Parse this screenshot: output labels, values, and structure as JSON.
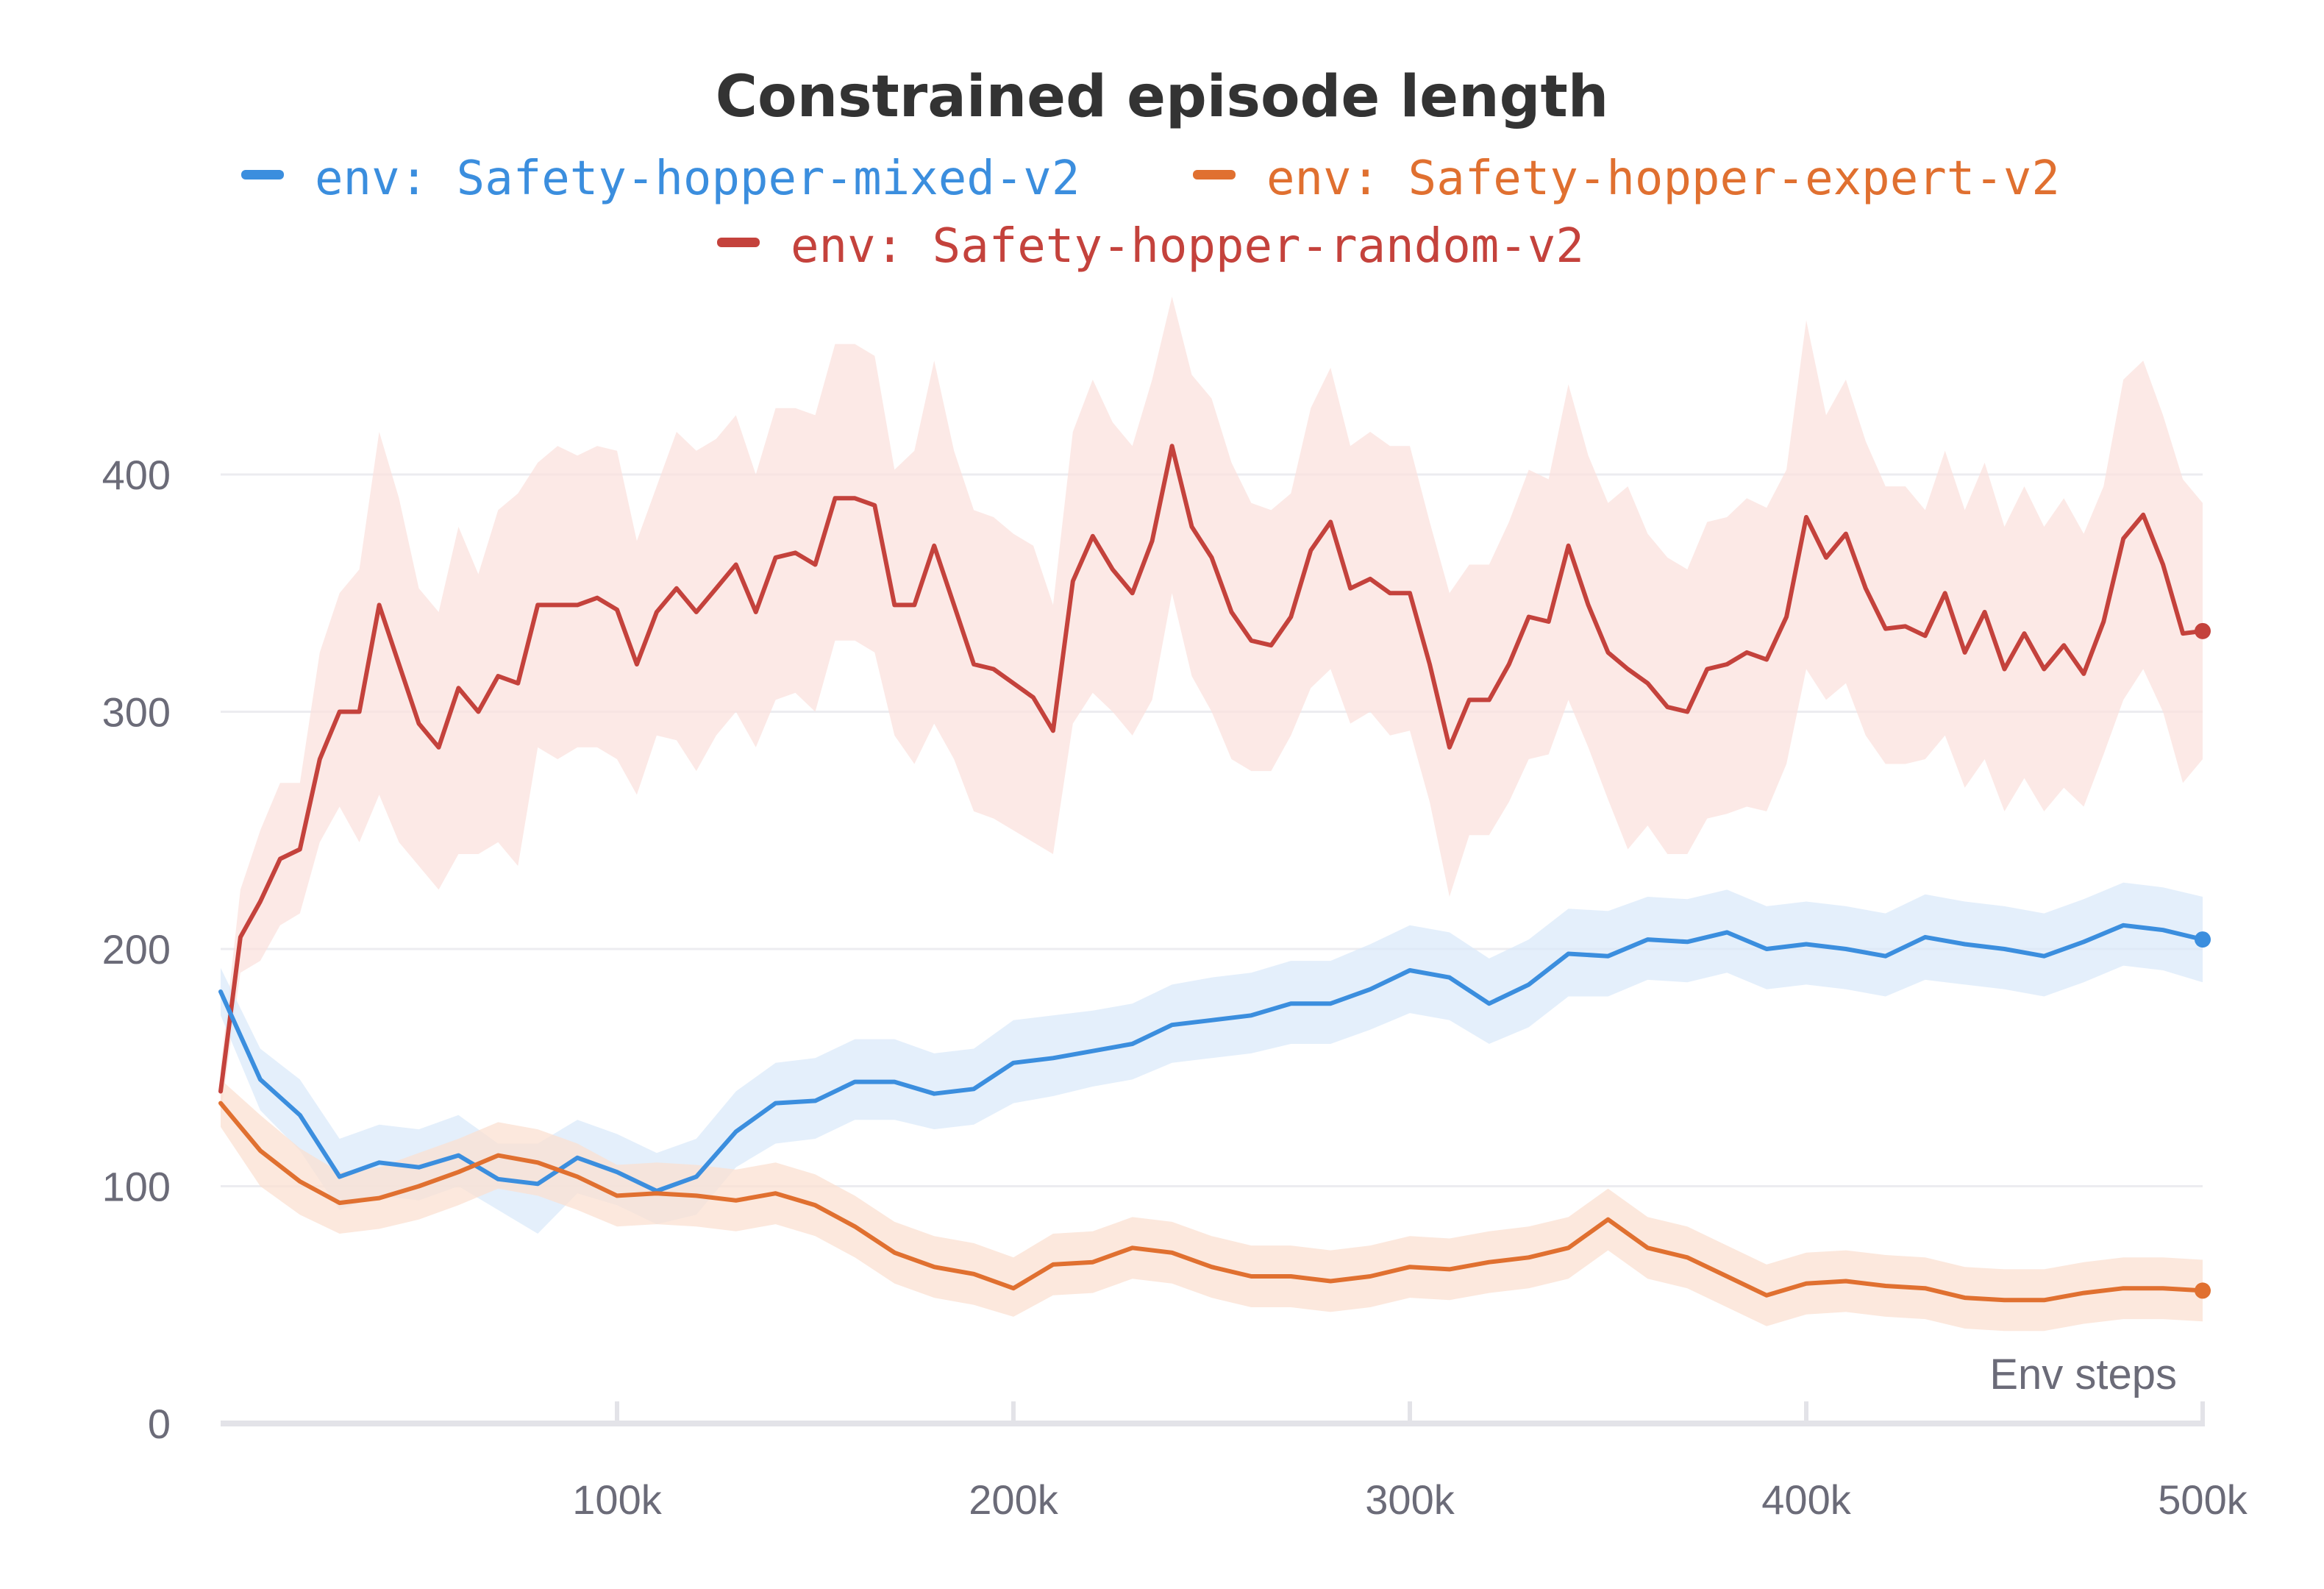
{
  "chart_data": {
    "type": "line",
    "title": "Constrained episode length",
    "xlabel": "Env steps",
    "ylabel": "",
    "xlim": [
      0,
      500000
    ],
    "ylim": [
      0,
      450
    ],
    "xticks": [
      100000,
      200000,
      300000,
      400000,
      500000
    ],
    "xtick_labels": [
      "100k",
      "200k",
      "300k",
      "400k",
      "500k"
    ],
    "yticks": [
      0,
      100,
      200,
      300,
      400
    ],
    "ytick_labels": [
      "0",
      "100",
      "200",
      "300",
      "400"
    ],
    "grid": true,
    "legend_position": "top",
    "series": [
      {
        "name": "env: Safety-hopper-mixed-v2",
        "color": "#3b8ede",
        "band_color": "#dbeafa",
        "x": [
          0,
          10000,
          20000,
          30000,
          40000,
          50000,
          60000,
          70000,
          80000,
          90000,
          100000,
          110000,
          120000,
          130000,
          140000,
          150000,
          160000,
          170000,
          180000,
          190000,
          200000,
          210000,
          220000,
          230000,
          240000,
          250000,
          260000,
          270000,
          280000,
          290000,
          300000,
          310000,
          320000,
          330000,
          340000,
          350000,
          360000,
          370000,
          380000,
          390000,
          400000,
          410000,
          420000,
          430000,
          440000,
          450000,
          460000,
          470000,
          480000,
          490000,
          500000
        ],
        "y": [
          182,
          145,
          130,
          104,
          110,
          108,
          113,
          103,
          101,
          112,
          106,
          98,
          104,
          123,
          135,
          136,
          144,
          144,
          139,
          141,
          152,
          154,
          157,
          160,
          168,
          170,
          172,
          177,
          177,
          183,
          191,
          188,
          177,
          185,
          198,
          197,
          204,
          203,
          207,
          200,
          202,
          200,
          197,
          205,
          202,
          200,
          197,
          203,
          210,
          208,
          204
        ],
        "lower": [
          172,
          132,
          115,
          90,
          96,
          94,
          100,
          90,
          80,
          97,
          92,
          84,
          88,
          108,
          118,
          120,
          128,
          128,
          124,
          126,
          135,
          138,
          142,
          145,
          152,
          154,
          156,
          160,
          160,
          166,
          173,
          170,
          160,
          167,
          180,
          180,
          187,
          186,
          190,
          183,
          185,
          183,
          180,
          187,
          185,
          183,
          180,
          186,
          193,
          191,
          186
        ],
        "upper": [
          192,
          158,
          145,
          120,
          126,
          124,
          130,
          118,
          118,
          128,
          122,
          114,
          120,
          140,
          152,
          154,
          162,
          162,
          156,
          158,
          170,
          172,
          174,
          177,
          185,
          188,
          190,
          195,
          195,
          202,
          210,
          207,
          196,
          204,
          217,
          216,
          222,
          221,
          225,
          218,
          220,
          218,
          215,
          223,
          220,
          218,
          215,
          221,
          228,
          226,
          222
        ]
      },
      {
        "name": "env: Safety-hopper-expert-v2",
        "color": "#e07030",
        "band_color": "#fbe0d2",
        "x": [
          0,
          10000,
          20000,
          30000,
          40000,
          50000,
          60000,
          70000,
          80000,
          90000,
          100000,
          110000,
          120000,
          130000,
          140000,
          150000,
          160000,
          170000,
          180000,
          190000,
          200000,
          210000,
          220000,
          230000,
          240000,
          250000,
          260000,
          270000,
          280000,
          290000,
          300000,
          310000,
          320000,
          330000,
          340000,
          350000,
          360000,
          370000,
          380000,
          390000,
          400000,
          410000,
          420000,
          430000,
          440000,
          450000,
          460000,
          470000,
          480000,
          490000,
          500000
        ],
        "y": [
          135,
          115,
          102,
          93,
          95,
          100,
          106,
          113,
          110,
          104,
          96,
          97,
          96,
          94,
          97,
          92,
          83,
          72,
          66,
          63,
          57,
          67,
          68,
          74,
          72,
          66,
          62,
          62,
          60,
          62,
          66,
          65,
          68,
          70,
          74,
          86,
          74,
          70,
          62,
          54,
          59,
          60,
          58,
          57,
          53,
          52,
          52,
          55,
          57,
          57,
          56
        ],
        "lower": [
          125,
          100,
          88,
          80,
          82,
          86,
          92,
          99,
          96,
          90,
          83,
          84,
          83,
          81,
          84,
          79,
          70,
          59,
          53,
          50,
          45,
          54,
          55,
          61,
          59,
          53,
          49,
          49,
          47,
          49,
          53,
          52,
          55,
          57,
          61,
          73,
          61,
          57,
          49,
          41,
          46,
          47,
          45,
          44,
          40,
          39,
          39,
          42,
          44,
          44,
          43
        ],
        "upper": [
          145,
          130,
          116,
          106,
          108,
          114,
          120,
          127,
          124,
          118,
          109,
          110,
          109,
          107,
          110,
          105,
          96,
          85,
          79,
          76,
          70,
          80,
          81,
          87,
          85,
          79,
          75,
          75,
          73,
          75,
          79,
          78,
          81,
          83,
          87,
          99,
          87,
          83,
          75,
          67,
          72,
          73,
          71,
          70,
          66,
          65,
          65,
          68,
          70,
          70,
          69
        ]
      },
      {
        "name": "env: Safety-hopper-random-v2",
        "color": "#c4423c",
        "band_color": "#fbe1de",
        "x": [
          0,
          5000,
          10000,
          15000,
          20000,
          25000,
          30000,
          35000,
          40000,
          45000,
          50000,
          55000,
          60000,
          65000,
          70000,
          75000,
          80000,
          85000,
          90000,
          95000,
          100000,
          105000,
          110000,
          115000,
          120000,
          125000,
          130000,
          135000,
          140000,
          145000,
          150000,
          155000,
          160000,
          165000,
          170000,
          175000,
          180000,
          185000,
          190000,
          195000,
          200000,
          205000,
          210000,
          215000,
          220000,
          225000,
          230000,
          235000,
          240000,
          245000,
          250000,
          255000,
          260000,
          265000,
          270000,
          275000,
          280000,
          285000,
          290000,
          295000,
          300000,
          305000,
          310000,
          315000,
          320000,
          325000,
          330000,
          335000,
          340000,
          345000,
          350000,
          355000,
          360000,
          365000,
          370000,
          375000,
          380000,
          385000,
          390000,
          395000,
          400000,
          405000,
          410000,
          415000,
          420000,
          425000,
          430000,
          435000,
          440000,
          445000,
          450000,
          455000,
          460000,
          465000,
          470000,
          475000,
          480000,
          485000,
          490000,
          495000,
          500000
        ],
        "y": [
          140,
          205,
          220,
          238,
          242,
          280,
          300,
          300,
          345,
          320,
          295,
          285,
          310,
          300,
          315,
          312,
          345,
          345,
          345,
          348,
          343,
          320,
          342,
          352,
          342,
          352,
          362,
          342,
          365,
          367,
          362,
          390,
          390,
          387,
          345,
          345,
          370,
          345,
          320,
          318,
          312,
          306,
          292,
          355,
          374,
          360,
          350,
          372,
          412,
          378,
          365,
          342,
          330,
          328,
          340,
          368,
          380,
          352,
          356,
          350,
          350,
          320,
          285,
          305,
          305,
          320,
          340,
          338,
          370,
          345,
          325,
          318,
          312,
          302,
          300,
          318,
          320,
          325,
          322,
          340,
          382,
          365,
          375,
          352,
          335,
          336,
          332,
          350,
          325,
          342,
          318,
          333,
          318,
          328,
          316,
          338,
          373,
          383,
          362,
          333,
          334
        ],
        "lower": [
          130,
          190,
          195,
          210,
          215,
          245,
          260,
          245,
          265,
          245,
          235,
          225,
          240,
          240,
          245,
          235,
          285,
          280,
          285,
          285,
          280,
          265,
          290,
          288,
          275,
          290,
          300,
          285,
          305,
          308,
          300,
          330,
          330,
          325,
          290,
          278,
          295,
          280,
          258,
          255,
          250,
          245,
          240,
          295,
          308,
          300,
          290,
          305,
          350,
          315,
          300,
          280,
          275,
          275,
          290,
          310,
          318,
          295,
          300,
          290,
          292,
          262,
          222,
          248,
          248,
          262,
          280,
          282,
          305,
          285,
          263,
          242,
          252,
          240,
          240,
          255,
          257,
          260,
          258,
          278,
          318,
          305,
          312,
          290,
          278,
          278,
          280,
          290,
          268,
          280,
          258,
          272,
          258,
          268,
          260,
          282,
          305,
          318,
          300,
          270,
          280
        ],
        "upper": [
          150,
          225,
          250,
          270,
          270,
          325,
          350,
          360,
          418,
          390,
          352,
          342,
          378,
          358,
          385,
          392,
          405,
          412,
          408,
          412,
          410,
          372,
          395,
          418,
          410,
          415,
          425,
          400,
          428,
          428,
          425,
          455,
          455,
          450,
          402,
          410,
          448,
          410,
          385,
          382,
          375,
          370,
          345,
          418,
          440,
          422,
          412,
          440,
          475,
          442,
          432,
          405,
          388,
          385,
          392,
          428,
          445,
          412,
          418,
          412,
          412,
          380,
          350,
          362,
          362,
          380,
          402,
          398,
          438,
          408,
          388,
          395,
          375,
          365,
          360,
          380,
          382,
          390,
          386,
          402,
          465,
          425,
          440,
          414,
          395,
          395,
          385,
          410,
          385,
          405,
          378,
          395,
          378,
          390,
          375,
          395,
          440,
          448,
          425,
          398,
          388
        ]
      }
    ]
  }
}
